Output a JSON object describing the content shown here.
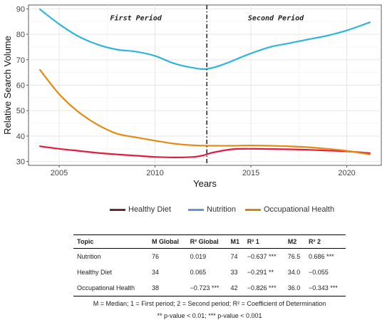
{
  "chart_data": {
    "type": "line",
    "xlabel": "Years",
    "ylabel": "Relative Search Volume",
    "xlim": [
      2003.4,
      2021.8
    ],
    "ylim": [
      28.5,
      91.5
    ],
    "xticks": [
      2005,
      2010,
      2015,
      2020
    ],
    "yticks": [
      30,
      40,
      50,
      60,
      70,
      80,
      90
    ],
    "grid": true,
    "breakpoint_x": 2012.7,
    "annotations": [
      "First Period",
      "Second Period"
    ],
    "legend_position": "bottom",
    "series": [
      {
        "name": "Healthy Diet",
        "color": "#e41a3c",
        "legend_color": "#6b2a33",
        "x": [
          2004.0,
          2005.0,
          2006.0,
          2007.0,
          2008.0,
          2009.0,
          2010.0,
          2011.0,
          2012.0,
          2012.5,
          2013.0,
          2014.0,
          2015.0,
          2016.0,
          2017.0,
          2018.0,
          2019.0,
          2020.0,
          2021.2
        ],
        "y": [
          36.0,
          35.0,
          34.2,
          33.4,
          32.8,
          32.3,
          31.8,
          31.6,
          31.8,
          32.4,
          33.5,
          34.8,
          35.0,
          34.9,
          34.8,
          34.6,
          34.3,
          34.0,
          33.3
        ]
      },
      {
        "name": "Nutrition",
        "color": "#2db6d8",
        "legend_color": "#6f8fe0",
        "x": [
          2004.0,
          2005.0,
          2006.0,
          2007.0,
          2008.0,
          2009.0,
          2010.0,
          2011.0,
          2012.0,
          2012.7,
          2013.5,
          2014.5,
          2015.0,
          2016.0,
          2017.0,
          2018.0,
          2019.0,
          2020.0,
          2021.2
        ],
        "y": [
          89.8,
          84.0,
          79.2,
          76.0,
          74.0,
          73.2,
          71.5,
          68.5,
          66.8,
          66.4,
          68.0,
          71.0,
          72.5,
          75.0,
          76.5,
          78.0,
          79.5,
          81.5,
          84.7
        ]
      },
      {
        "name": "Occupational Health",
        "color": "#e38a12",
        "legend_color": "#c98c12",
        "x": [
          2004.0,
          2005.0,
          2006.0,
          2007.0,
          2008.0,
          2009.0,
          2010.0,
          2011.0,
          2012.0,
          2013.0,
          2014.0,
          2015.0,
          2016.0,
          2017.0,
          2018.0,
          2019.0,
          2020.0,
          2021.2
        ],
        "y": [
          66.0,
          56.5,
          49.5,
          44.5,
          41.0,
          39.5,
          38.2,
          37.0,
          36.4,
          36.2,
          36.2,
          36.3,
          36.2,
          36.0,
          35.6,
          35.0,
          34.2,
          32.8
        ]
      }
    ]
  },
  "table": {
    "headers": [
      "Topic",
      "M Global",
      "R² Global",
      "M1",
      "R² 1",
      "M2",
      "R² 2"
    ],
    "rows": [
      [
        "Nutrition",
        "76",
        "0.019",
        "74",
        "−0.637 ***",
        "76.5",
        "0.686 ***"
      ],
      [
        "Healthy Diet",
        "34",
        "0.065",
        "33",
        "−0.291 **",
        "34.0",
        "−0.055"
      ],
      [
        "Occupational Health",
        "38",
        "−0.723 ***",
        "42",
        "−0.826 ***",
        "36.0",
        "−0.343 ***"
      ]
    ],
    "note_line1": "M = Median; 1 = First period; 2 = Second period; R² = Coefficient of Determination",
    "note_line2": "** p-value < 0.01; *** p-value < 0.001"
  }
}
